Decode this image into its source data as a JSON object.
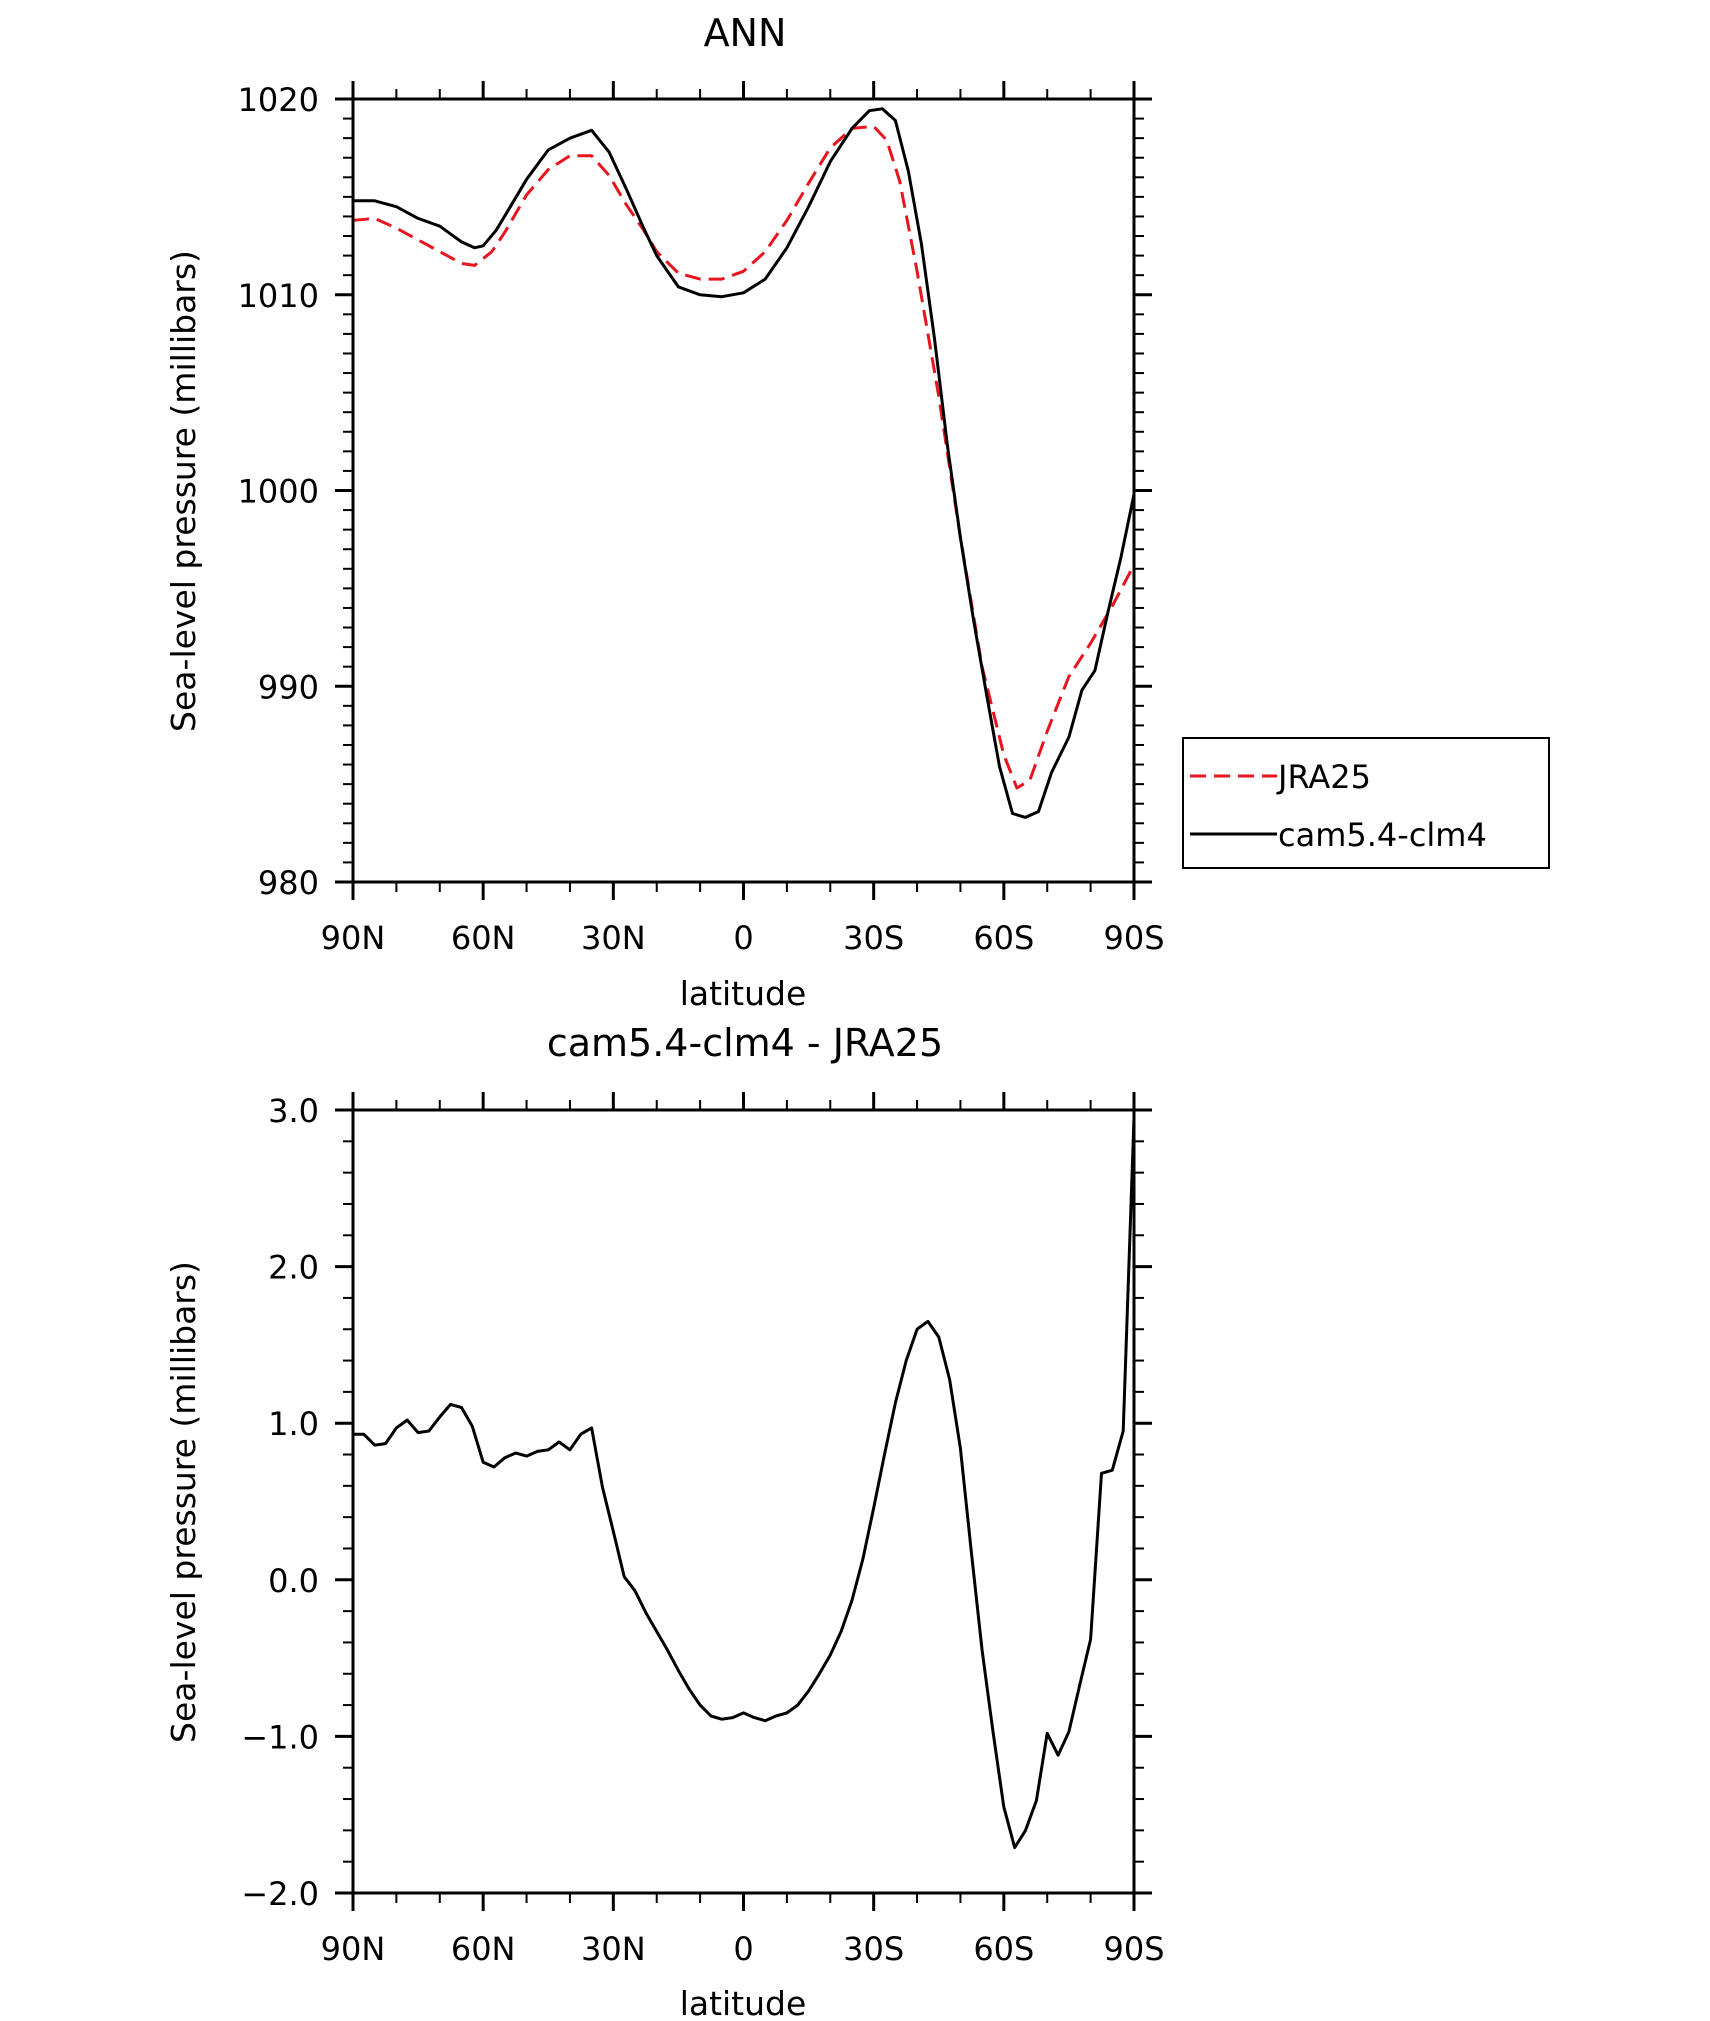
{
  "chart_data": [
    {
      "type": "line",
      "title": "ANN",
      "xlabel": "latitude",
      "ylabel": "Sea-level pressure (millibars)",
      "xlim": [
        90,
        -90
      ],
      "ylim": [
        980,
        1020
      ],
      "x_ticks": [
        90,
        60,
        30,
        0,
        -30,
        -60,
        -90
      ],
      "x_tick_labels": [
        "90N",
        "60N",
        "30N",
        "0",
        "30S",
        "60S",
        "90S"
      ],
      "y_ticks": [
        980,
        990,
        1000,
        1010,
        1020
      ],
      "y_tick_labels": [
        "980",
        "990",
        "1000",
        "1010",
        "1020"
      ],
      "legend_position": "right",
      "series": [
        {
          "name": "JRA25",
          "color": "#e8141e",
          "dash": "dashed",
          "x": [
            90,
            85,
            80,
            75,
            70,
            65,
            62,
            58,
            55,
            50,
            45,
            40,
            35,
            31,
            27,
            23,
            20,
            15,
            10,
            5,
            0,
            -5,
            -10,
            -15,
            -20,
            -25,
            -30,
            -33,
            -36,
            -40,
            -45,
            -50,
            -55,
            -60,
            -63,
            -66,
            -70,
            -75,
            -80,
            -85,
            -90
          ],
          "values": [
            1013.8,
            1013.9,
            1013.4,
            1012.8,
            1012.2,
            1011.6,
            1011.5,
            1012.2,
            1013.2,
            1015.1,
            1016.4,
            1017.1,
            1017.1,
            1016.1,
            1014.6,
            1013.3,
            1012.2,
            1011.1,
            1010.8,
            1010.8,
            1011.2,
            1012.2,
            1013.8,
            1015.7,
            1017.5,
            1018.5,
            1018.6,
            1017.9,
            1015.8,
            1011.2,
            1004.8,
            997.6,
            991.0,
            986.5,
            984.8,
            985.2,
            987.7,
            990.5,
            992.2,
            994.1,
            996.2
          ]
        },
        {
          "name": "cam5.4-clm4",
          "color": "#000000",
          "dash": "solid",
          "x": [
            90,
            85,
            80,
            75,
            70,
            65,
            62,
            60,
            57,
            54,
            50,
            45,
            40,
            35,
            31,
            27,
            23,
            20,
            15,
            10,
            5,
            0,
            -5,
            -10,
            -15,
            -20,
            -25,
            -29,
            -32,
            -35,
            -38,
            -41,
            -44,
            -47,
            -50,
            -53,
            -56,
            -59,
            -62,
            -65,
            -68,
            -71,
            -75,
            -78,
            -81,
            -84,
            -87,
            -90
          ],
          "values": [
            1014.8,
            1014.8,
            1014.5,
            1013.9,
            1013.5,
            1012.7,
            1012.4,
            1012.5,
            1013.3,
            1014.4,
            1015.9,
            1017.4,
            1018.0,
            1018.4,
            1017.3,
            1015.4,
            1013.4,
            1012.0,
            1010.4,
            1010.0,
            1009.9,
            1010.1,
            1010.8,
            1012.4,
            1014.5,
            1016.8,
            1018.5,
            1019.4,
            1019.5,
            1018.9,
            1016.3,
            1012.6,
            1007.8,
            1002.3,
            997.6,
            993.4,
            989.6,
            985.9,
            983.5,
            983.3,
            983.6,
            985.6,
            987.4,
            989.8,
            990.8,
            993.8,
            996.6,
            999.8
          ]
        }
      ]
    },
    {
      "type": "line",
      "title": "cam5.4-clm4 - JRA25",
      "xlabel": "latitude",
      "ylabel": "Sea-level pressure (millibars)",
      "xlim": [
        90,
        -90
      ],
      "ylim": [
        -2.0,
        3.0
      ],
      "x_ticks": [
        90,
        60,
        30,
        0,
        -30,
        -60,
        -90
      ],
      "x_tick_labels": [
        "90N",
        "60N",
        "30N",
        "0",
        "30S",
        "60S",
        "90S"
      ],
      "y_ticks": [
        -2.0,
        -1.0,
        0.0,
        1.0,
        2.0,
        3.0
      ],
      "y_tick_labels": [
        "-2.0",
        "-1.0",
        "0.0",
        "1.0",
        "2.0",
        "3.0"
      ],
      "series": [
        {
          "name": "cam5.4-clm4 - JRA25",
          "color": "#000000",
          "dash": "solid",
          "x": [
            90,
            87.5,
            85,
            82.5,
            80,
            77.5,
            75,
            72.5,
            70,
            67.5,
            65,
            62.5,
            60,
            57.5,
            55,
            52.5,
            50,
            47.5,
            45,
            42.5,
            40,
            37.5,
            35,
            32.5,
            30,
            27.5,
            25,
            22.5,
            20,
            17.5,
            15,
            12.5,
            10,
            7.5,
            5,
            2.5,
            0,
            -2.5,
            -5,
            -7.5,
            -10,
            -12.5,
            -15,
            -17.5,
            -20,
            -22.5,
            -25,
            -27.5,
            -30,
            -32.5,
            -35,
            -37.5,
            -40,
            -42.5,
            -45,
            -47.5,
            -50,
            -52.5,
            -55,
            -57.5,
            -60,
            -62.5,
            -65,
            -67.5,
            -70,
            -72.5,
            -75,
            -77.5,
            -80,
            -82.5,
            -85,
            -87.5,
            -90
          ],
          "values": [
            0.93,
            0.93,
            0.86,
            0.87,
            0.97,
            1.02,
            0.94,
            0.95,
            1.04,
            1.12,
            1.1,
            0.98,
            0.75,
            0.72,
            0.78,
            0.81,
            0.79,
            0.82,
            0.83,
            0.88,
            0.83,
            0.93,
            0.97,
            0.59,
            0.31,
            0.02,
            -0.07,
            -0.21,
            -0.33,
            -0.45,
            -0.58,
            -0.7,
            -0.8,
            -0.87,
            -0.89,
            -0.88,
            -0.85,
            -0.88,
            -0.9,
            -0.87,
            -0.85,
            -0.8,
            -0.71,
            -0.6,
            -0.48,
            -0.33,
            -0.13,
            0.13,
            0.46,
            0.8,
            1.13,
            1.4,
            1.6,
            1.65,
            1.55,
            1.28,
            0.84,
            0.18,
            -0.45,
            -0.97,
            -1.45,
            -1.71,
            -1.6,
            -1.41,
            -0.98,
            -1.12,
            -0.97,
            -0.67,
            -0.38,
            0.68,
            0.7,
            0.95,
            2.95
          ]
        }
      ]
    }
  ]
}
